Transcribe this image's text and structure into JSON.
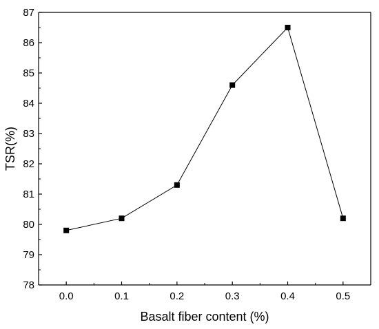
{
  "chart_data": {
    "type": "line",
    "title": "",
    "xlabel": "Basalt fiber content (%)",
    "ylabel": "TSR(%)",
    "x": [
      0.0,
      0.1,
      0.2,
      0.3,
      0.4,
      0.5
    ],
    "xticks": [
      "0.0",
      "0.1",
      "0.2",
      "0.3",
      "0.4",
      "0.5"
    ],
    "yticks": [
      "78",
      "79",
      "80",
      "81",
      "82",
      "83",
      "84",
      "85",
      "86",
      "87"
    ],
    "xlim": [
      -0.05,
      0.55
    ],
    "ylim": [
      78,
      87
    ],
    "series": [
      {
        "values": [
          79.8,
          80.2,
          81.3,
          84.6,
          86.5,
          80.2
        ],
        "marker": "square",
        "color": "#000000"
      }
    ],
    "grid": false,
    "legend": "none"
  }
}
